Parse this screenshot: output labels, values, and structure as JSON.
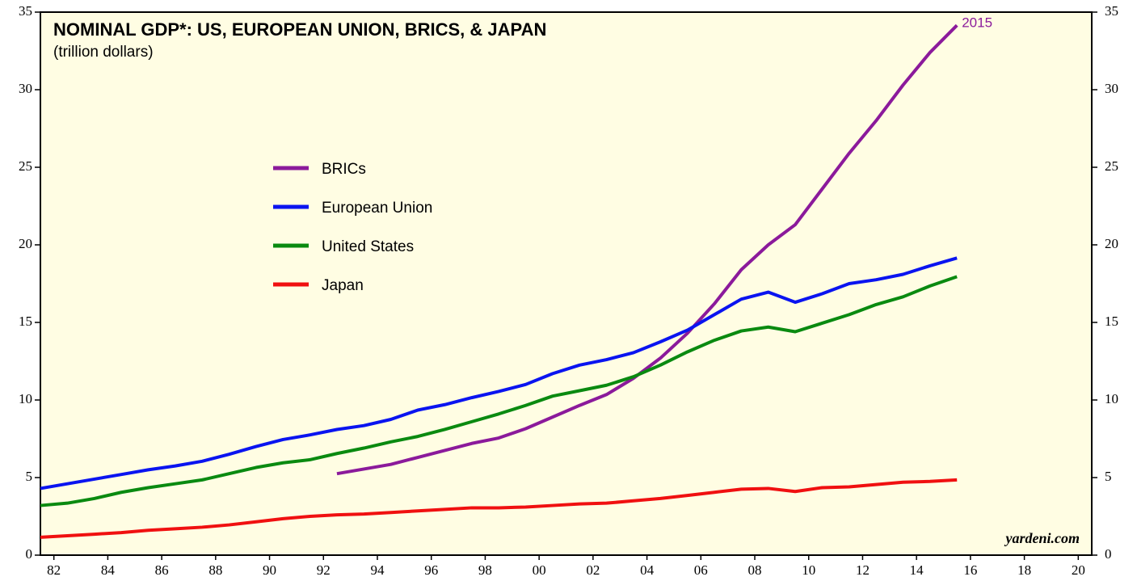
{
  "chart_data": {
    "type": "line",
    "title": "NOMINAL GDP*: US, EUROPEAN UNION, BRICS, & JAPAN",
    "subtitle": "(trillion dollars)",
    "annotation": "2015",
    "source": "yardeni.com",
    "x": [
      1982,
      1983,
      1984,
      1985,
      1986,
      1987,
      1988,
      1989,
      1990,
      1991,
      1992,
      1993,
      1994,
      1995,
      1996,
      1997,
      1998,
      1999,
      2000,
      2001,
      2002,
      2003,
      2004,
      2005,
      2006,
      2007,
      2008,
      2009,
      2010,
      2011,
      2012,
      2013,
      2014,
      2015,
      2016
    ],
    "series": [
      {
        "name": "BRICs",
        "color": "#8b1a9b",
        "values": [
          null,
          null,
          null,
          null,
          null,
          null,
          null,
          null,
          null,
          null,
          null,
          5.25,
          5.55,
          5.85,
          6.3,
          6.75,
          7.2,
          7.55,
          8.15,
          8.9,
          9.65,
          10.35,
          11.4,
          12.7,
          14.3,
          16.2,
          18.4,
          20.0,
          21.3,
          23.6,
          25.9,
          28.0,
          30.3,
          32.4,
          34.15
        ]
      },
      {
        "name": "European Union",
        "color": "#0a14f0",
        "values": [
          4.3,
          4.6,
          4.9,
          5.2,
          5.5,
          5.75,
          6.05,
          6.5,
          7.0,
          7.45,
          7.75,
          8.1,
          8.35,
          8.75,
          9.35,
          9.7,
          10.15,
          10.55,
          11.0,
          11.7,
          12.25,
          12.6,
          13.05,
          13.75,
          14.5,
          15.5,
          16.5,
          16.95,
          16.3,
          16.85,
          17.5,
          17.75,
          18.1,
          18.65,
          19.15
        ]
      },
      {
        "name": "United States",
        "color": "#0a8a10",
        "values": [
          3.2,
          3.35,
          3.65,
          4.05,
          4.35,
          4.6,
          4.85,
          5.25,
          5.65,
          5.95,
          6.15,
          6.55,
          6.9,
          7.3,
          7.65,
          8.1,
          8.6,
          9.1,
          9.65,
          10.25,
          10.6,
          10.95,
          11.5,
          12.25,
          13.1,
          13.85,
          14.45,
          14.7,
          14.4,
          14.95,
          15.5,
          16.15,
          16.65,
          17.35,
          17.95
        ]
      },
      {
        "name": "Japan",
        "color": "#f01010",
        "values": [
          1.15,
          1.25,
          1.35,
          1.45,
          1.6,
          1.7,
          1.8,
          1.95,
          2.15,
          2.35,
          2.5,
          2.6,
          2.65,
          2.75,
          2.85,
          2.95,
          3.05,
          3.05,
          3.1,
          3.2,
          3.3,
          3.35,
          3.5,
          3.65,
          3.85,
          4.05,
          4.25,
          4.3,
          4.1,
          4.35,
          4.4,
          4.55,
          4.7,
          4.75,
          4.85
        ]
      }
    ],
    "xlim": [
      1982,
      2021
    ],
    "xticks": [
      {
        "value": 1982.5,
        "label": "82"
      },
      {
        "value": 1984.5,
        "label": "84"
      },
      {
        "value": 1986.5,
        "label": "86"
      },
      {
        "value": 1988.5,
        "label": "88"
      },
      {
        "value": 1990.5,
        "label": "90"
      },
      {
        "value": 1992.5,
        "label": "92"
      },
      {
        "value": 1994.5,
        "label": "94"
      },
      {
        "value": 1996.5,
        "label": "96"
      },
      {
        "value": 1998.5,
        "label": "98"
      },
      {
        "value": 2000.5,
        "label": "00"
      },
      {
        "value": 2002.5,
        "label": "02"
      },
      {
        "value": 2004.5,
        "label": "04"
      },
      {
        "value": 2006.5,
        "label": "06"
      },
      {
        "value": 2008.5,
        "label": "08"
      },
      {
        "value": 2010.5,
        "label": "10"
      },
      {
        "value": 2012.5,
        "label": "12"
      },
      {
        "value": 2014.5,
        "label": "14"
      },
      {
        "value": 2016.5,
        "label": "16"
      },
      {
        "value": 2018.5,
        "label": "18"
      },
      {
        "value": 2020.5,
        "label": "20"
      }
    ],
    "ylim": [
      0,
      35
    ],
    "yticks": [
      0,
      5,
      10,
      15,
      20,
      25,
      30,
      35
    ],
    "y2lim": [
      0,
      35
    ],
    "y2ticks": [
      0,
      5,
      10,
      15,
      20,
      25,
      30,
      35
    ]
  }
}
